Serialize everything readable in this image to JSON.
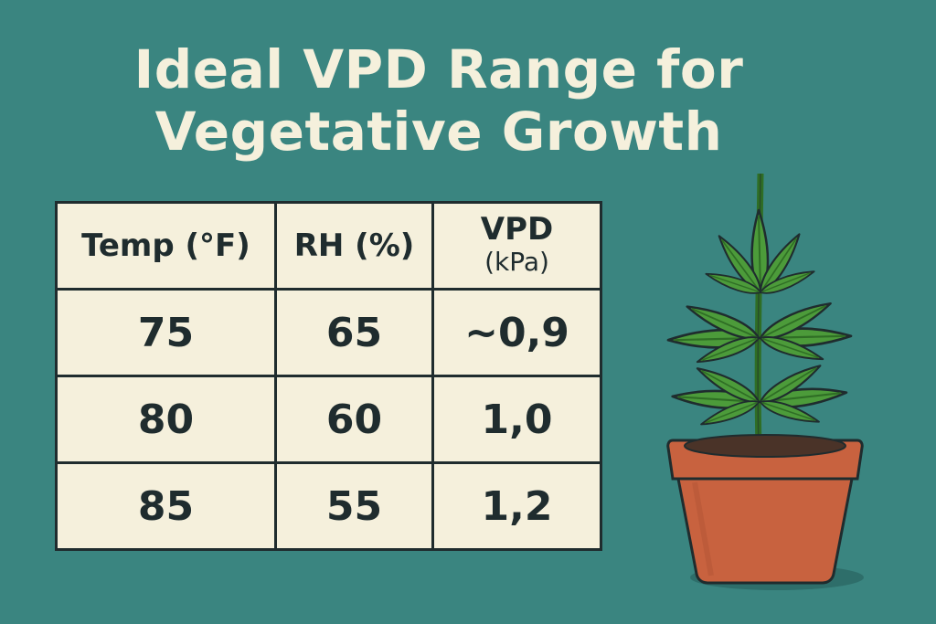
{
  "title": {
    "line1": "Ideal VPD Range  for",
    "line2": "Vegetative Growth"
  },
  "table": {
    "headers": {
      "temp": "Temp (°F)",
      "rh": "RH (%)",
      "vpd": "VPD",
      "vpd_unit": "(kPa)"
    },
    "rows": [
      {
        "temp": "75",
        "rh": "65",
        "vpd": "~0,9"
      },
      {
        "temp": "80",
        "rh": "60",
        "vpd": "1,0"
      },
      {
        "temp": "85",
        "rh": "55",
        "vpd": "1,2"
      }
    ]
  },
  "colors": {
    "background": "#3a8580",
    "cream": "#f5f0dc",
    "ink": "#1f2c2e",
    "leaf": "#4c9b3a",
    "pot": "#c8623f"
  },
  "illustration": {
    "icon": "potted-plant-icon"
  }
}
